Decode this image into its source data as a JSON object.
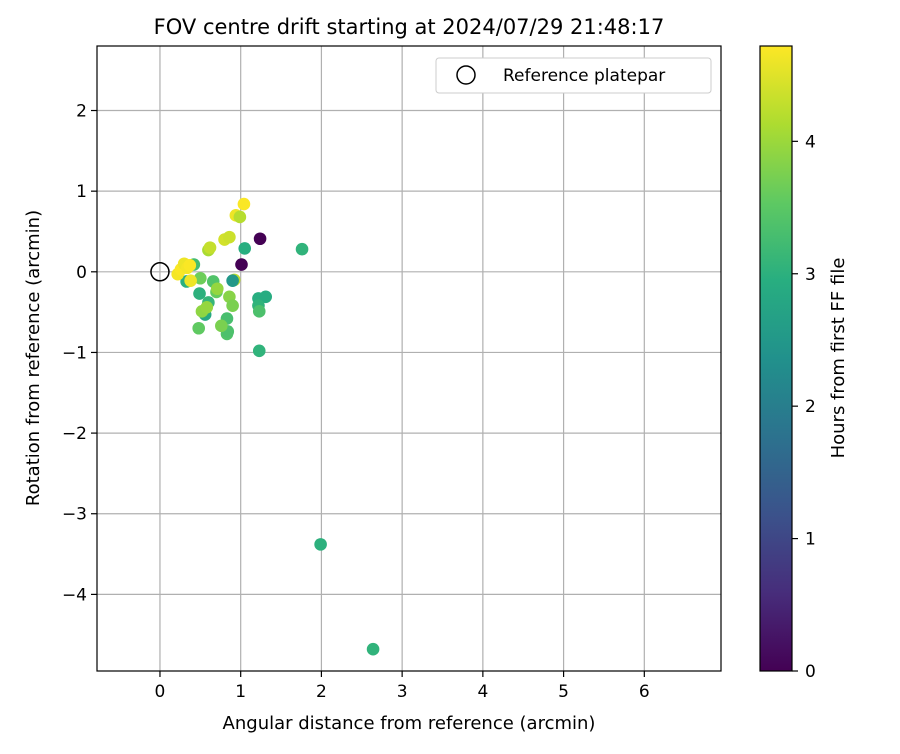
{
  "chart_data": {
    "type": "scatter",
    "title": "FOV centre drift starting at 2024/07/29 21:48:17",
    "xlabel": "Angular distance from reference (arcmin)",
    "ylabel": "Rotation from reference (arcmin)",
    "xlim": [
      -0.78,
      6.95
    ],
    "ylim": [
      -4.95,
      2.8
    ],
    "xticks": [
      0,
      1,
      2,
      3,
      4,
      5,
      6
    ],
    "yticks": [
      -4,
      -3,
      -2,
      -1,
      0,
      1,
      2
    ],
    "xtick_labels": [
      "0",
      "1",
      "2",
      "3",
      "4",
      "5",
      "6"
    ],
    "ytick_labels": [
      "−4",
      "−3",
      "−2",
      "−1",
      "0",
      "1",
      "2"
    ],
    "grid": true,
    "legend": {
      "label": "Reference platepar",
      "position": "top-right"
    },
    "reference_point": {
      "x": 0,
      "y": 0
    },
    "colorbar": {
      "label": "Hours from first FF file",
      "colormap": "viridis",
      "range": [
        0,
        4.72
      ],
      "ticks": [
        0,
        1,
        2,
        3,
        4
      ],
      "tick_labels": [
        "0",
        "1",
        "2",
        "3",
        "4"
      ]
    },
    "points": [
      {
        "x": 1.24,
        "y": 0.41,
        "hours": 0.0
      },
      {
        "x": 1.01,
        "y": 0.09,
        "hours": 0.0
      },
      {
        "x": 1.05,
        "y": 0.29,
        "hours": 2.95
      },
      {
        "x": 1.76,
        "y": 0.28,
        "hours": 3.05
      },
      {
        "x": 0.33,
        "y": -0.12,
        "hours": 2.98
      },
      {
        "x": 0.42,
        "y": 0.09,
        "hours": 3.25
      },
      {
        "x": 0.49,
        "y": -0.27,
        "hours": 3.0
      },
      {
        "x": 0.56,
        "y": -0.53,
        "hours": 2.85
      },
      {
        "x": 0.6,
        "y": -0.38,
        "hours": 3.1
      },
      {
        "x": 0.66,
        "y": -0.12,
        "hours": 3.4
      },
      {
        "x": 0.7,
        "y": -0.25,
        "hours": 3.6
      },
      {
        "x": 0.83,
        "y": -0.58,
        "hours": 3.3
      },
      {
        "x": 0.83,
        "y": -0.77,
        "hours": 3.4
      },
      {
        "x": 0.84,
        "y": -0.74,
        "hours": 3.35
      },
      {
        "x": 0.48,
        "y": -0.7,
        "hours": 3.55
      },
      {
        "x": 0.76,
        "y": -0.67,
        "hours": 3.75
      },
      {
        "x": 0.52,
        "y": -0.49,
        "hours": 3.9
      },
      {
        "x": 0.58,
        "y": -0.44,
        "hours": 3.95
      },
      {
        "x": 0.86,
        "y": -0.31,
        "hours": 3.85
      },
      {
        "x": 0.9,
        "y": -0.42,
        "hours": 3.75
      },
      {
        "x": 0.71,
        "y": -0.21,
        "hours": 3.95
      },
      {
        "x": 0.5,
        "y": -0.08,
        "hours": 3.65
      },
      {
        "x": 0.92,
        "y": -0.1,
        "hours": 4.25
      },
      {
        "x": 0.9,
        "y": -0.11,
        "hours": 2.5
      },
      {
        "x": 1.22,
        "y": -0.33,
        "hours": 2.95
      },
      {
        "x": 1.31,
        "y": -0.31,
        "hours": 2.9
      },
      {
        "x": 1.22,
        "y": -0.42,
        "hours": 3.05
      },
      {
        "x": 1.23,
        "y": -0.49,
        "hours": 3.35
      },
      {
        "x": 1.23,
        "y": -0.98,
        "hours": 3.05
      },
      {
        "x": 0.6,
        "y": 0.27,
        "hours": 4.1
      },
      {
        "x": 0.62,
        "y": 0.3,
        "hours": 4.3
      },
      {
        "x": 0.8,
        "y": 0.4,
        "hours": 4.4
      },
      {
        "x": 0.86,
        "y": 0.43,
        "hours": 4.35
      },
      {
        "x": 0.94,
        "y": 0.7,
        "hours": 4.6
      },
      {
        "x": 0.99,
        "y": 0.68,
        "hours": 4.2
      },
      {
        "x": 1.04,
        "y": 0.84,
        "hours": 4.7
      },
      {
        "x": 0.22,
        "y": -0.03,
        "hours": 4.65
      },
      {
        "x": 0.26,
        "y": 0.03,
        "hours": 4.7
      },
      {
        "x": 0.3,
        "y": 0.1,
        "hours": 4.6
      },
      {
        "x": 0.34,
        "y": 0.05,
        "hours": 4.65
      },
      {
        "x": 0.37,
        "y": 0.08,
        "hours": 4.7
      },
      {
        "x": 0.38,
        "y": -0.11,
        "hours": 4.6
      },
      {
        "x": 1.99,
        "y": -3.38,
        "hours": 3.0
      },
      {
        "x": 2.64,
        "y": -4.68,
        "hours": 3.05
      }
    ]
  }
}
